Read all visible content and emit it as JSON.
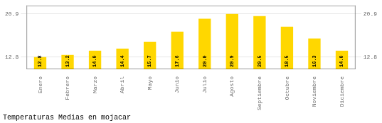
{
  "chart_data": {
    "type": "bar",
    "title": "Temperaturas Medias en mojacar",
    "categories": [
      "Enero",
      "Febrero",
      "Marzo",
      "Abril",
      "Mayo",
      "Junio",
      "Julio",
      "Agosto",
      "Septiembre",
      "Octubre",
      "Noviembre",
      "Diciembre"
    ],
    "values": [
      12.8,
      13.2,
      14.0,
      14.4,
      15.7,
      17.6,
      20.0,
      20.9,
      20.5,
      18.5,
      16.3,
      14.0
    ],
    "value_labels": [
      "12.8",
      "13.2",
      "14.0",
      "14.4",
      "15.7",
      "17.6",
      "20.0",
      "20.9",
      "20.5",
      "18.5",
      "16.3",
      "14.0"
    ],
    "color": "#FFD700",
    "ylim": [
      10.5,
      22.5
    ],
    "yticks": [
      12.8,
      20.9
    ],
    "y2lim": [
      10.5,
      22.5
    ],
    "y2ticks": [
      12.8,
      20.9
    ],
    "grid": true,
    "data_labels": true
  }
}
